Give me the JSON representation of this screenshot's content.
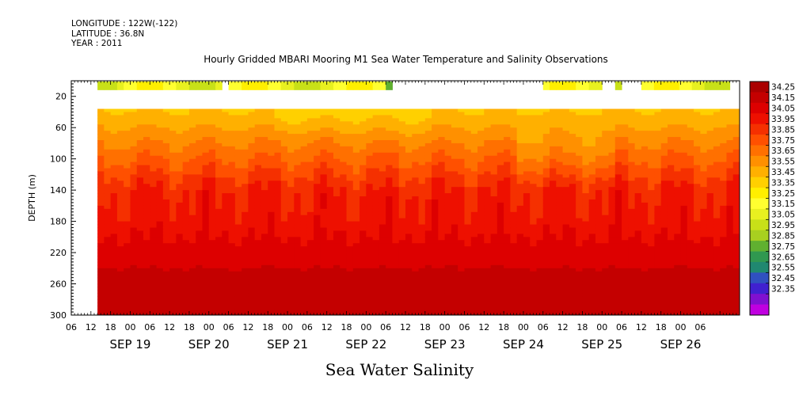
{
  "header": {
    "longitude": "LONGITUDE : 122W(-122)",
    "latitude": "LATITUDE : 36.8N",
    "year": "YEAR : 2011"
  },
  "chart_data": {
    "type": "heatmap",
    "title": "Hourly Gridded MBARI Mooring M1 Sea Water Temperature and Salinity Observations",
    "xlabel": "Sea Water Salinity",
    "ylabel": "DEPTH (m)",
    "ylim": [
      300,
      0
    ],
    "y_ticks": [
      20,
      60,
      100,
      140,
      180,
      220,
      260,
      300
    ],
    "x_hour_ticks": [
      "06",
      "12",
      "18",
      "00",
      "06",
      "12",
      "18",
      "00",
      "06",
      "12",
      "18",
      "00",
      "06",
      "12",
      "18",
      "00",
      "06",
      "12",
      "18",
      "00",
      "06",
      "12",
      "18",
      "00",
      "06",
      "12",
      "18",
      "00",
      "06",
      "12",
      "18",
      "00",
      "06"
    ],
    "x_date_labels": [
      "SEP 19",
      "SEP 20",
      "SEP 21",
      "SEP 22",
      "SEP 23",
      "SEP 24",
      "SEP 25",
      "SEP 26"
    ],
    "x_range_hours_from_sep18_06": [
      0,
      204
    ],
    "data_start_hours": 8,
    "colorbar": {
      "levels": [
        "34.25",
        "34.15",
        "34.05",
        "33.95",
        "33.85",
        "33.75",
        "33.65",
        "33.55",
        "33.45",
        "33.35",
        "33.25",
        "33.15",
        "33.05",
        "32.95",
        "32.85",
        "32.75",
        "32.65",
        "32.55",
        "32.45",
        "32.35"
      ],
      "colors": [
        "#aa0000",
        "#c40000",
        "#dd0000",
        "#ee1000",
        "#f53000",
        "#ff5000",
        "#ff7000",
        "#ff9000",
        "#ffb000",
        "#ffd000",
        "#ffef00",
        "#ffff30",
        "#e8f020",
        "#c8e018",
        "#a8d020",
        "#60b030",
        "#309850",
        "#208870",
        "#3050c0",
        "#4020d0",
        "#8010d0",
        "#c000e0"
      ]
    },
    "surface_salinity_segments_hours": [
      [
        8,
        46
      ],
      [
        48,
        98
      ],
      [
        144,
        162
      ],
      [
        166,
        168
      ],
      [
        174,
        201
      ]
    ],
    "depth_profile_typical": [
      {
        "depth": 40,
        "value": 33.45
      },
      {
        "depth": 60,
        "value": 33.55
      },
      {
        "depth": 100,
        "value": 33.75
      },
      {
        "depth": 140,
        "value": 33.95
      },
      {
        "depth": 180,
        "value": 34.0
      },
      {
        "depth": 220,
        "value": 34.1
      },
      {
        "depth": 260,
        "value": 34.2
      },
      {
        "depth": 300,
        "value": 34.2
      }
    ]
  }
}
